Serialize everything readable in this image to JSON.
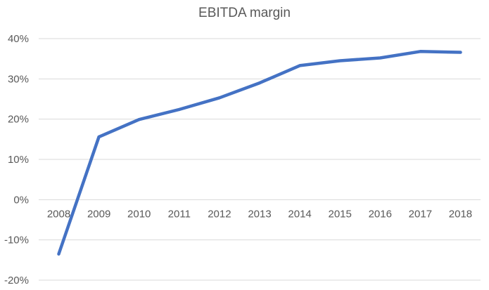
{
  "chart_data": {
    "type": "line",
    "title": "EBITDA margin",
    "xlabel": "",
    "ylabel": "",
    "categories": [
      "2008",
      "2009",
      "2010",
      "2011",
      "2012",
      "2013",
      "2014",
      "2015",
      "2016",
      "2017",
      "2018"
    ],
    "series": [
      {
        "values": [
          -13.5,
          15.6,
          19.9,
          22.4,
          25.3,
          29.0,
          33.3,
          34.5,
          35.2,
          36.8,
          36.6
        ]
      }
    ],
    "ylim": [
      -20,
      40
    ],
    "yticks": [
      40,
      30,
      20,
      10,
      0,
      -10,
      -20
    ],
    "ytick_labels": [
      "40%",
      "30%",
      "20%",
      "10%",
      "0%",
      "-10%",
      "-20%"
    ],
    "grid": true,
    "legend": "none",
    "colors": {
      "line": "#4472C4",
      "grid": "#d9d9d9",
      "text": "#595959"
    }
  }
}
